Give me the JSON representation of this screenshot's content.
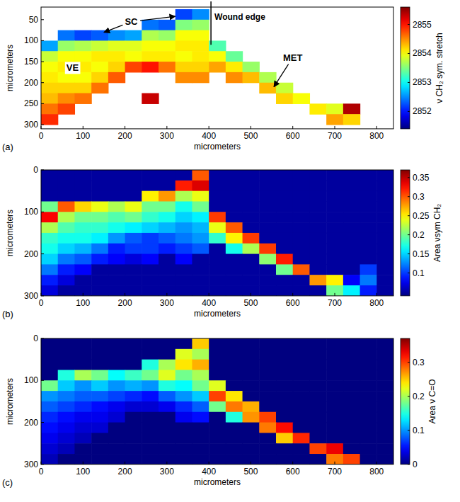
{
  "chart_data": [
    {
      "type": "heatmap",
      "panel": "(a)",
      "xlabel": "micrometers",
      "ylabel": "micrometers",
      "xlim": [
        0,
        840
      ],
      "ylim": [
        20,
        310
      ],
      "xticks": [
        0,
        100,
        200,
        300,
        400,
        500,
        600,
        700,
        800
      ],
      "yticks": [
        50,
        100,
        150,
        200,
        250,
        300
      ],
      "x": [
        20,
        60,
        100,
        140,
        180,
        220,
        260,
        300,
        340,
        380,
        420,
        460,
        500,
        540,
        580,
        620,
        660,
        700,
        740,
        780,
        820
      ],
      "y": [
        12.5,
        37.5,
        62.5,
        87.5,
        112.5,
        137.5,
        162.5,
        187.5,
        212.5,
        237.5,
        262.5,
        287.5
      ],
      "cells": [
        [
          null,
          null,
          null,
          null,
          null,
          null,
          null,
          null,
          null,
          null,
          null,
          null,
          null,
          null,
          null,
          null,
          null,
          null,
          null,
          null,
          null
        ],
        [
          null,
          null,
          null,
          null,
          null,
          null,
          null,
          null,
          2852.2,
          2852.5,
          null,
          null,
          null,
          null,
          null,
          null,
          null,
          null,
          null,
          null,
          null
        ],
        [
          null,
          null,
          null,
          null,
          null,
          null,
          2852.4,
          2852.3,
          2853.5,
          2853.6,
          null,
          null,
          null,
          null,
          null,
          null,
          null,
          null,
          null,
          null,
          null
        ],
        [
          null,
          2852.4,
          2852.2,
          2852.3,
          2852.5,
          2852.6,
          2853.7,
          2853.6,
          2854.0,
          2854.0,
          null,
          null,
          null,
          null,
          null,
          null,
          null,
          null,
          null,
          null,
          null
        ],
        [
          2852.6,
          2853.6,
          2853.7,
          2853.8,
          2853.9,
          2853.9,
          2854.0,
          2854.0,
          2854.1,
          2854.1,
          2853.3,
          null,
          null,
          null,
          null,
          null,
          null,
          null,
          null,
          null,
          null
        ],
        [
          2853.8,
          2854.0,
          2854.0,
          2854.1,
          2854.1,
          2854.0,
          2854.1,
          2854.1,
          2854.0,
          2854.1,
          2854.0,
          2853.4,
          null,
          null,
          null,
          null,
          null,
          null,
          null,
          null,
          null
        ],
        [
          2854.0,
          2854.1,
          2854.1,
          2854.0,
          2854.2,
          2854.8,
          2855.0,
          2854.6,
          2854.2,
          2854.2,
          2854.4,
          2854.1,
          2853.6,
          null,
          null,
          null,
          null,
          null,
          null,
          null,
          null
        ],
        [
          2854.1,
          2854.0,
          2854.0,
          2854.2,
          2854.7,
          null,
          null,
          null,
          2854.5,
          2854.5,
          null,
          2854.5,
          2854.3,
          2853.7,
          null,
          null,
          null,
          null,
          null,
          null,
          null
        ],
        [
          2854.2,
          2854.2,
          2854.2,
          2854.6,
          null,
          null,
          null,
          null,
          null,
          null,
          null,
          null,
          null,
          2854.3,
          2853.8,
          null,
          null,
          null,
          null,
          null,
          null
        ],
        [
          2854.3,
          2854.5,
          2854.6,
          null,
          null,
          null,
          2855.3,
          null,
          null,
          null,
          null,
          null,
          null,
          null,
          2854.2,
          2854.0,
          null,
          null,
          null,
          null,
          null
        ],
        [
          2854.6,
          2854.8,
          null,
          null,
          null,
          null,
          null,
          null,
          null,
          null,
          null,
          null,
          null,
          null,
          null,
          null,
          2854.1,
          2853.9,
          2855.4,
          null,
          null
        ],
        [
          2854.9,
          null,
          null,
          null,
          null,
          null,
          null,
          null,
          null,
          null,
          null,
          null,
          null,
          null,
          null,
          null,
          null,
          2854.4,
          2854.2,
          null,
          null
        ]
      ],
      "colorbar": {
        "label": "ν CH₂ sym. stretch",
        "range": [
          2851.4,
          2855.6
        ],
        "ticks": [
          2852,
          2853,
          2854,
          2855
        ]
      },
      "annotations": [
        {
          "text": "SC",
          "x": 215,
          "y": 55,
          "arrows": [
            [
              150,
              80
            ],
            [
              320,
              42
            ]
          ]
        },
        {
          "text": "VE",
          "x": 75,
          "y": 165,
          "arrows": []
        },
        {
          "text": "MET",
          "x": 600,
          "y": 140,
          "arrows": [
            [
              555,
              210
            ]
          ]
        }
      ],
      "wound_edge": {
        "text": "Wound edge",
        "x": 405,
        "y": 110
      }
    },
    {
      "type": "heatmap",
      "panel": "(b)",
      "xlabel": "micrometers",
      "ylabel": "micrometers",
      "xlim": [
        0,
        840
      ],
      "ylim": [
        0,
        300
      ],
      "xticks": [
        0,
        100,
        200,
        300,
        400,
        500,
        600,
        700,
        800
      ],
      "yticks": [
        0,
        100,
        200,
        300
      ],
      "x": [
        20,
        60,
        100,
        140,
        180,
        220,
        260,
        300,
        340,
        380,
        420,
        460,
        500,
        540,
        580,
        620,
        660,
        700,
        740,
        780,
        820
      ],
      "y": [
        12.5,
        37.5,
        62.5,
        87.5,
        112.5,
        137.5,
        162.5,
        187.5,
        212.5,
        237.5,
        262.5,
        287.5
      ],
      "cells": [
        [
          0.05,
          0.05,
          0.05,
          0.05,
          0.05,
          0.05,
          0.05,
          0.05,
          0.05,
          0.3,
          0.05,
          0.05,
          0.05,
          0.05,
          0.05,
          0.05,
          0.05,
          0.05,
          0.05,
          0.05,
          0.05
        ],
        [
          0.05,
          0.05,
          0.05,
          0.05,
          0.05,
          0.05,
          0.05,
          0.05,
          0.32,
          0.34,
          0.05,
          0.05,
          0.05,
          0.05,
          0.05,
          0.05,
          0.05,
          0.05,
          0.05,
          0.05,
          0.05
        ],
        [
          0.05,
          0.05,
          0.05,
          0.05,
          0.05,
          0.05,
          0.25,
          0.28,
          0.22,
          0.24,
          0.05,
          0.05,
          0.05,
          0.05,
          0.05,
          0.05,
          0.05,
          0.05,
          0.05,
          0.05,
          0.05
        ],
        [
          0.2,
          0.3,
          0.26,
          0.24,
          0.22,
          0.24,
          0.2,
          0.2,
          0.17,
          0.2,
          0.05,
          0.05,
          0.05,
          0.05,
          0.05,
          0.05,
          0.05,
          0.05,
          0.05,
          0.05,
          0.05
        ],
        [
          0.33,
          0.22,
          0.2,
          0.2,
          0.19,
          0.2,
          0.18,
          0.17,
          0.15,
          0.16,
          0.31,
          0.05,
          0.05,
          0.05,
          0.05,
          0.05,
          0.05,
          0.05,
          0.05,
          0.05,
          0.05
        ],
        [
          0.22,
          0.19,
          0.18,
          0.18,
          0.17,
          0.16,
          0.15,
          0.14,
          0.13,
          0.14,
          0.24,
          0.3,
          0.05,
          0.05,
          0.05,
          0.05,
          0.05,
          0.05,
          0.05,
          0.05,
          0.05
        ],
        [
          0.18,
          0.17,
          0.17,
          0.16,
          0.13,
          0.11,
          0.1,
          0.11,
          0.12,
          0.13,
          0.18,
          0.25,
          0.31,
          0.05,
          0.05,
          0.05,
          0.05,
          0.05,
          0.05,
          0.05,
          0.05
        ],
        [
          0.17,
          0.15,
          0.14,
          0.12,
          0.09,
          0.1,
          0.1,
          0.09,
          0.1,
          0.11,
          0.05,
          0.17,
          0.22,
          0.31,
          0.05,
          0.05,
          0.05,
          0.05,
          0.05,
          0.05,
          0.05
        ],
        [
          0.15,
          0.12,
          0.11,
          0.09,
          0.08,
          0.07,
          0.08,
          0.05,
          0.08,
          0.05,
          0.05,
          0.05,
          0.05,
          0.21,
          0.32,
          0.05,
          0.05,
          0.05,
          0.05,
          0.05,
          0.05
        ],
        [
          0.12,
          0.09,
          0.08,
          0.05,
          0.05,
          0.05,
          0.05,
          0.05,
          0.05,
          0.05,
          0.05,
          0.05,
          0.05,
          0.05,
          0.2,
          0.3,
          0.05,
          0.05,
          0.05,
          0.1,
          0.05
        ],
        [
          0.09,
          0.07,
          0.05,
          0.05,
          0.05,
          0.05,
          0.05,
          0.05,
          0.05,
          0.05,
          0.05,
          0.05,
          0.05,
          0.05,
          0.05,
          0.05,
          0.28,
          0.25,
          0.08,
          0.12,
          0.05
        ],
        [
          0.07,
          0.05,
          0.05,
          0.05,
          0.05,
          0.05,
          0.05,
          0.05,
          0.05,
          0.05,
          0.05,
          0.05,
          0.05,
          0.05,
          0.05,
          0.05,
          0.05,
          0.2,
          0.16,
          0.09,
          0.05
        ]
      ],
      "colorbar": {
        "label": "Area νsym CH₂",
        "range": [
          0.04,
          0.37
        ],
        "ticks": [
          0.1,
          0.15,
          0.2,
          0.25,
          0.3,
          0.35
        ]
      }
    },
    {
      "type": "heatmap",
      "panel": "(c)",
      "xlabel": "micrometers",
      "ylabel": "micrometers",
      "xlim": [
        0,
        840
      ],
      "ylim": [
        0,
        300
      ],
      "xticks": [
        0,
        100,
        200,
        300,
        400,
        500,
        600,
        700,
        800
      ],
      "yticks": [
        0,
        100,
        200,
        300
      ],
      "x": [
        20,
        60,
        100,
        140,
        180,
        220,
        260,
        300,
        340,
        380,
        420,
        460,
        500,
        540,
        580,
        620,
        660,
        700,
        740,
        780,
        820
      ],
      "y": [
        12.5,
        37.5,
        62.5,
        87.5,
        112.5,
        137.5,
        162.5,
        187.5,
        212.5,
        237.5,
        262.5,
        287.5
      ],
      "cells": [
        [
          0,
          0,
          0,
          0,
          0,
          0,
          0,
          0,
          0,
          0.25,
          0,
          0,
          0,
          0,
          0,
          0,
          0,
          0,
          0,
          0,
          0
        ],
        [
          0,
          0,
          0,
          0,
          0,
          0,
          0,
          0,
          0.22,
          0.2,
          0,
          0,
          0,
          0,
          0,
          0,
          0,
          0,
          0,
          0,
          0
        ],
        [
          0,
          0,
          0,
          0,
          0,
          0,
          0.15,
          0.2,
          0.24,
          0.26,
          0,
          0,
          0,
          0,
          0,
          0,
          0,
          0,
          0,
          0,
          0
        ],
        [
          0,
          0.15,
          0.2,
          0.18,
          0.14,
          0.16,
          0.18,
          0.22,
          0.18,
          0.2,
          0,
          0,
          0,
          0,
          0,
          0,
          0,
          0,
          0,
          0,
          0
        ],
        [
          0.18,
          0.12,
          0.1,
          0.12,
          0.1,
          0.11,
          0.1,
          0.15,
          0.14,
          0.18,
          0.22,
          0,
          0,
          0,
          0,
          0,
          0,
          0,
          0,
          0,
          0
        ],
        [
          0.1,
          0.09,
          0.08,
          0.08,
          0.07,
          0.06,
          0.05,
          0.08,
          0.1,
          0.12,
          0.3,
          0.24,
          0,
          0,
          0,
          0,
          0,
          0,
          0,
          0,
          0
        ],
        [
          0.08,
          0.07,
          0.06,
          0.05,
          0.04,
          0.03,
          0.03,
          0.04,
          0.06,
          0.08,
          0.18,
          0.28,
          0.26,
          0,
          0,
          0,
          0,
          0,
          0,
          0,
          0
        ],
        [
          0.06,
          0.05,
          0.04,
          0.04,
          0.03,
          0,
          0,
          0,
          0.04,
          0.05,
          0,
          0.15,
          0.27,
          0.3,
          0,
          0,
          0,
          0,
          0,
          0,
          0
        ],
        [
          0.05,
          0.04,
          0.03,
          0.03,
          0,
          0,
          0,
          0,
          0,
          0,
          0,
          0,
          0,
          0.28,
          0.32,
          0,
          0,
          0,
          0,
          0,
          0
        ],
        [
          0.04,
          0.03,
          0.02,
          0,
          0,
          0,
          0,
          0,
          0,
          0,
          0,
          0,
          0,
          0,
          0.25,
          0.31,
          0,
          0,
          0,
          0,
          0
        ],
        [
          0.03,
          0.02,
          0,
          0,
          0,
          0,
          0,
          0,
          0,
          0,
          0,
          0,
          0,
          0,
          0,
          0,
          0.3,
          0.33,
          0,
          0,
          0
        ],
        [
          0.02,
          0,
          0,
          0,
          0,
          0,
          0,
          0,
          0,
          0,
          0,
          0,
          0,
          0,
          0,
          0,
          0,
          0.28,
          0.3,
          0,
          0
        ]
      ],
      "colorbar": {
        "label": "Area ν C=O",
        "range": [
          0,
          0.37
        ],
        "ticks": [
          0,
          0.1,
          0.2,
          0.3
        ]
      }
    }
  ]
}
